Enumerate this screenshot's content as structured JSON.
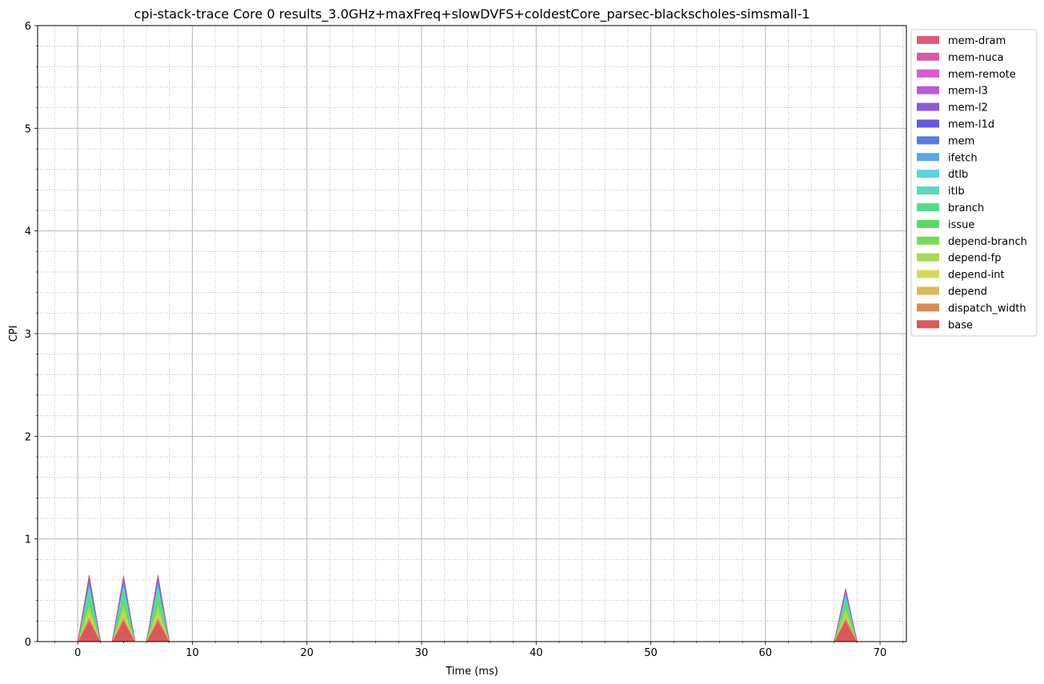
{
  "chart_data": {
    "type": "area",
    "title": "cpi-stack-trace Core 0 results_3.0GHz+maxFreq+slowDVFS+coldestCore_parsec-blackscholes-simsmall-1",
    "xlabel": "Time (ms)",
    "ylabel": "CPI",
    "xlim": [
      -3.5,
      72.3
    ],
    "ylim": [
      0,
      6
    ],
    "xticks": [
      0,
      10,
      20,
      30,
      40,
      50,
      60,
      70
    ],
    "yticks": [
      0,
      1,
      2,
      3,
      4,
      5,
      6
    ],
    "grid": true,
    "minor_grid": true,
    "legend_position": "outside-top-right",
    "x": [
      0,
      1,
      2,
      3,
      4,
      5,
      6,
      7,
      8,
      66,
      67,
      68
    ],
    "series": [
      {
        "name": "base",
        "color": "#d9595a",
        "values": [
          0,
          0.2,
          0,
          0,
          0.2,
          0,
          0,
          0.2,
          0,
          0,
          0.2,
          0
        ]
      },
      {
        "name": "dispatch_width",
        "color": "#d98c5a",
        "values": [
          0,
          0.03,
          0,
          0,
          0.03,
          0,
          0,
          0.03,
          0,
          0,
          0.03,
          0
        ]
      },
      {
        "name": "depend",
        "color": "#d9b95a",
        "values": [
          0,
          0.02,
          0,
          0,
          0.02,
          0,
          0,
          0.02,
          0,
          0,
          0.02,
          0
        ]
      },
      {
        "name": "depend-int",
        "color": "#d3d95a",
        "values": [
          0,
          0.03,
          0,
          0,
          0.03,
          0,
          0,
          0.03,
          0,
          0,
          0.02,
          0
        ]
      },
      {
        "name": "depend-fp",
        "color": "#a7d95a",
        "values": [
          0,
          0.07,
          0,
          0,
          0.07,
          0,
          0,
          0.07,
          0,
          0,
          0.05,
          0
        ]
      },
      {
        "name": "depend-branch",
        "color": "#7bd95a",
        "values": [
          0,
          0.03,
          0,
          0,
          0.03,
          0,
          0,
          0.03,
          0,
          0,
          0.02,
          0
        ]
      },
      {
        "name": "issue",
        "color": "#5ad967",
        "values": [
          0,
          0.04,
          0,
          0,
          0.04,
          0,
          0,
          0.04,
          0,
          0,
          0.03,
          0
        ]
      },
      {
        "name": "branch",
        "color": "#5ad98c",
        "values": [
          0,
          0.08,
          0,
          0,
          0.08,
          0,
          0,
          0.08,
          0,
          0,
          0.05,
          0
        ]
      },
      {
        "name": "itlb",
        "color": "#5ad9b9",
        "values": [
          0,
          0.03,
          0,
          0,
          0.03,
          0,
          0,
          0.03,
          0,
          0,
          0.02,
          0
        ]
      },
      {
        "name": "dtlb",
        "color": "#5ad3d9",
        "values": [
          0,
          0.02,
          0,
          0,
          0.02,
          0,
          0,
          0.02,
          0,
          0,
          0.02,
          0
        ]
      },
      {
        "name": "ifetch",
        "color": "#5aa7d9",
        "values": [
          0,
          0.03,
          0,
          0,
          0.03,
          0,
          0,
          0.03,
          0,
          0,
          0.02,
          0
        ]
      },
      {
        "name": "mem",
        "color": "#5a7bd9",
        "values": [
          0,
          0.04,
          0,
          0,
          0.03,
          0,
          0,
          0.04,
          0,
          0,
          0.02,
          0
        ]
      },
      {
        "name": "mem-l1d",
        "color": "#675ad9",
        "values": [
          0,
          0.02,
          0,
          0,
          0.02,
          0,
          0,
          0.02,
          0,
          0,
          0.01,
          0
        ]
      },
      {
        "name": "mem-l2",
        "color": "#8c5ad9",
        "values": [
          0,
          0.005,
          0,
          0,
          0.005,
          0,
          0,
          0.005,
          0,
          0,
          0.005,
          0
        ]
      },
      {
        "name": "mem-l3",
        "color": "#b95ad9",
        "values": [
          0,
          0.002,
          0,
          0,
          0.002,
          0,
          0,
          0.002,
          0,
          0,
          0.002,
          0
        ]
      },
      {
        "name": "mem-remote",
        "color": "#d95ad3",
        "values": [
          0,
          0,
          0,
          0,
          0,
          0,
          0,
          0,
          0,
          0,
          0,
          0
        ]
      },
      {
        "name": "mem-nuca",
        "color": "#d95aa7",
        "values": [
          0,
          0,
          0,
          0,
          0,
          0,
          0,
          0,
          0,
          0,
          0,
          0
        ]
      },
      {
        "name": "mem-dram",
        "color": "#d95a7b",
        "values": [
          0,
          0,
          0,
          0,
          0,
          0,
          0,
          0,
          0,
          0,
          0,
          0
        ]
      }
    ]
  }
}
